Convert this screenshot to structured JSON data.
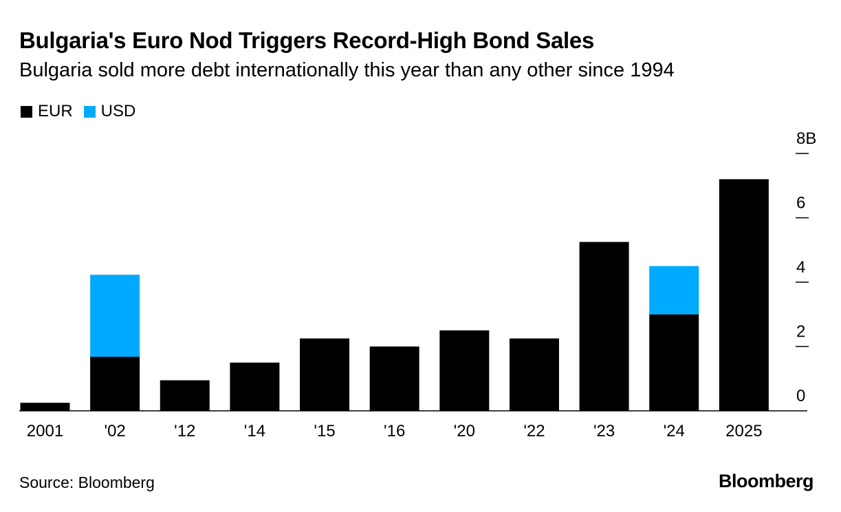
{
  "header": {
    "title": "Bulgaria's Euro Nod Triggers Record-High Bond Sales",
    "subtitle": "Bulgaria sold more debt internationally this year than any other since 1994"
  },
  "legend": [
    {
      "label": "EUR",
      "color": "#000000"
    },
    {
      "label": "USD",
      "color": "#00aaff"
    }
  ],
  "footer": {
    "source": "Source: Bloomberg",
    "brand": "Bloomberg"
  },
  "chart_data": {
    "type": "bar",
    "stacked": true,
    "categories": [
      "2001",
      "'02",
      "'12",
      "'14",
      "'15",
      "'16",
      "'20",
      "'22",
      "'23",
      "'24",
      "2025"
    ],
    "series": [
      {
        "name": "EUR",
        "color": "#000000",
        "values": [
          0.25,
          1.68,
          0.95,
          1.5,
          2.25,
          2.0,
          2.5,
          2.25,
          5.25,
          3.0,
          7.2
        ]
      },
      {
        "name": "USD",
        "color": "#00aaff",
        "values": [
          0,
          2.55,
          0,
          0,
          0,
          0,
          0,
          0,
          0,
          1.5,
          0
        ]
      }
    ],
    "y_ticks": [
      {
        "value": 0,
        "label": "0"
      },
      {
        "value": 2,
        "label": "2"
      },
      {
        "value": 4,
        "label": "4"
      },
      {
        "value": 6,
        "label": "6"
      },
      {
        "value": 8,
        "label": "8B"
      }
    ],
    "ylim": [
      0,
      8
    ],
    "axis_position": "right",
    "grid": false
  }
}
